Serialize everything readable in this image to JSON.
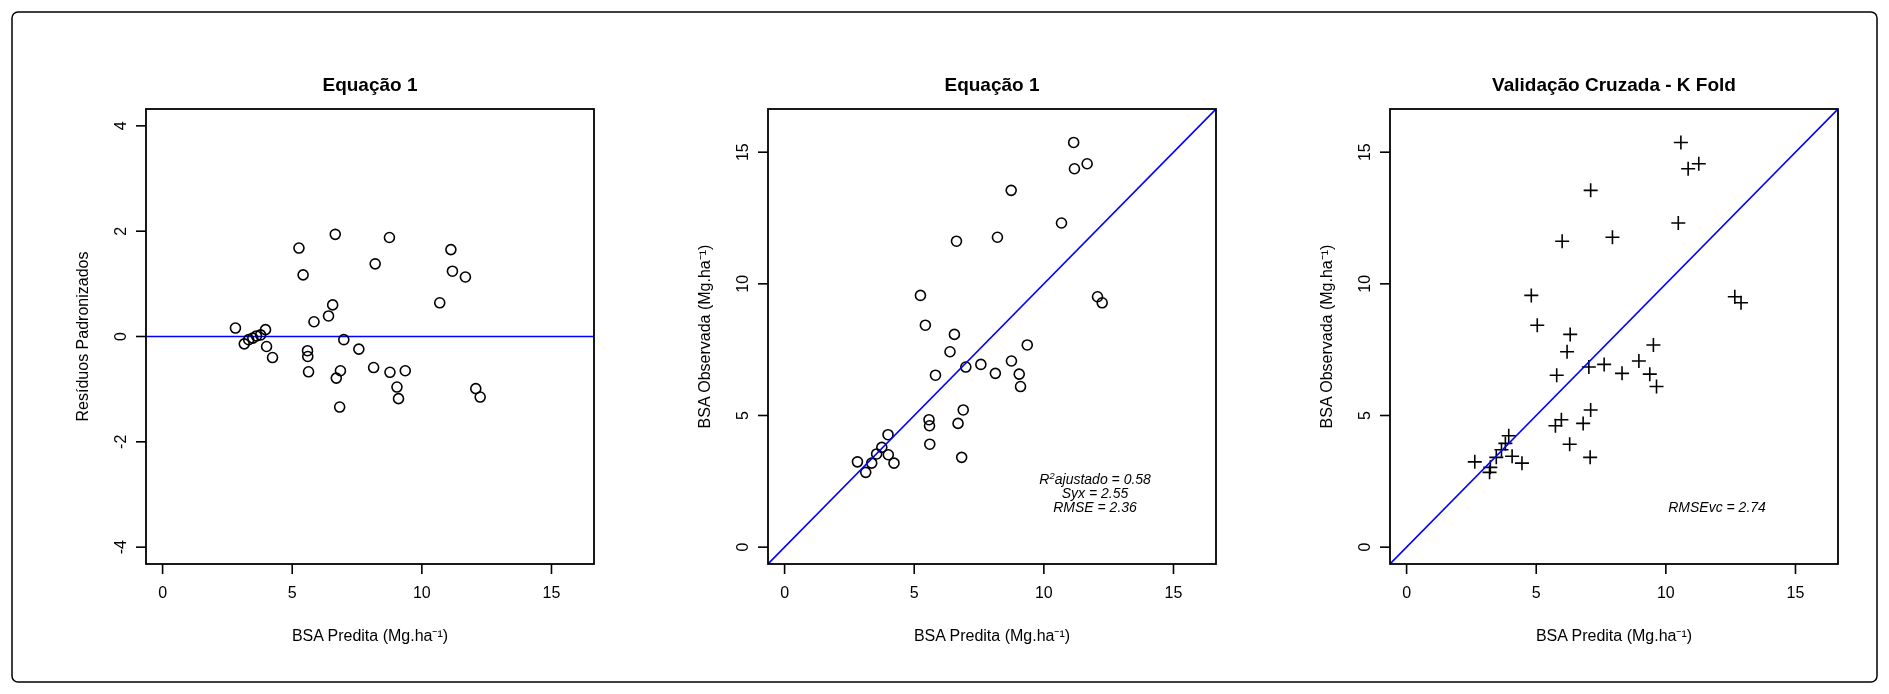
{
  "chart_data": [
    {
      "type": "scatter",
      "title": "Equação 1",
      "xlabel": "BSA Predita (Mg.ha⁻¹)",
      "ylabel": "Resíduos Padronizados",
      "xlim": [
        -0.64,
        16.64
      ],
      "xticks": [
        0,
        5,
        10,
        15
      ],
      "ylim": [
        -4.32,
        4.32
      ],
      "yticks": [
        -4,
        -2,
        0,
        2,
        4
      ],
      "grid": false,
      "series": [
        {
          "marker": "circle",
          "color": "#000000",
          "x": [
            2.81,
            3.15,
            3.32,
            3.48,
            3.62,
            3.78,
            3.97,
            4.01,
            4.24,
            5.26,
            5.42,
            5.59,
            5.6,
            5.63,
            5.84,
            6.4,
            6.56,
            6.66,
            6.7,
            6.86,
            6.83,
            6.99,
            7.57,
            8.14,
            8.2,
            8.75,
            8.77,
            9.04,
            9.1,
            9.36,
            10.69,
            11.12,
            11.18,
            11.68,
            12.08,
            12.25
          ],
          "values": [
            0.16,
            -0.14,
            -0.06,
            -0.03,
            0.01,
            0.03,
            0.13,
            -0.19,
            -0.4,
            1.68,
            1.17,
            -0.27,
            -0.38,
            -0.67,
            0.28,
            0.39,
            0.6,
            1.94,
            -0.79,
            -0.65,
            -1.34,
            -0.06,
            -0.24,
            -0.59,
            1.38,
            1.88,
            -0.68,
            -0.96,
            -1.18,
            -0.65,
            0.64,
            1.65,
            1.24,
            1.13,
            -0.99,
            -1.15
          ]
        }
      ],
      "ref_lines": [
        {
          "axis": "y",
          "value": 0,
          "color": "#0000ff"
        }
      ]
    },
    {
      "type": "scatter",
      "title": "Equação 1",
      "xlabel": "BSA Predita (Mg.ha⁻¹)",
      "ylabel": "BSA Observada (Mg.ha⁻¹)",
      "xlim": [
        -0.64,
        16.64
      ],
      "xticks": [
        0,
        5,
        10,
        15
      ],
      "ylim": [
        -0.64,
        16.64
      ],
      "yticks": [
        0,
        5,
        10,
        15
      ],
      "grid": false,
      "annotations": [
        "R$^{2}$ajustado = 0.58",
        "Syx = 2.55",
        "RMSE = 2.36"
      ],
      "series": [
        {
          "marker": "circle",
          "color": "#000000",
          "x": [
            2.81,
            3.13,
            3.36,
            3.55,
            3.75,
            3.99,
            4.0,
            4.22,
            5.24,
            5.43,
            5.57,
            5.59,
            5.6,
            5.82,
            6.38,
            6.55,
            6.63,
            6.69,
            6.83,
            6.89,
            6.99,
            7.57,
            8.13,
            8.21,
            8.74,
            8.75,
            9.05,
            9.1,
            9.36,
            10.68,
            11.15,
            11.18,
            11.67,
            12.07,
            12.25
          ],
          "values": [
            3.24,
            2.84,
            3.19,
            3.54,
            3.79,
            4.27,
            3.51,
            3.19,
            9.56,
            8.43,
            4.84,
            4.61,
            3.91,
            6.53,
            7.42,
            8.08,
            11.62,
            4.7,
            3.41,
            5.21,
            6.84,
            6.94,
            6.6,
            11.77,
            13.55,
            7.07,
            6.57,
            6.1,
            7.68,
            12.31,
            15.37,
            14.37,
            14.56,
            9.51,
            9.28
          ]
        },
        {
          "type": "line",
          "color": "#0000ff",
          "x": [
            -0.64,
            16.64
          ],
          "values": [
            -0.64,
            16.64
          ]
        }
      ]
    },
    {
      "type": "scatter",
      "title": "Validação Cruzada - K Fold",
      "xlabel": "BSA Predita (Mg.ha⁻¹)",
      "ylabel": "BSA Observada (Mg.ha⁻¹)",
      "xlim": [
        -0.64,
        16.64
      ],
      "xticks": [
        0,
        5,
        10,
        15
      ],
      "ylim": [
        -0.64,
        16.64
      ],
      "yticks": [
        0,
        5,
        10,
        15
      ],
      "grid": false,
      "annotations": [
        "RMSEvc = 2.74"
      ],
      "series": [
        {
          "marker": "cross",
          "color": "#000000",
          "x": [
            2.63,
            3.2,
            3.23,
            3.46,
            3.66,
            3.81,
            3.94,
            4.07,
            4.45,
            4.81,
            5.04,
            5.74,
            5.79,
            5.97,
            6.0,
            6.19,
            6.31,
            6.29,
            6.81,
            7.03,
            7.08,
            7.1,
            7.1,
            7.62,
            7.94,
            8.31,
            8.96,
            9.38,
            9.52,
            9.64,
            10.48,
            10.58,
            10.86,
            11.27,
            12.66,
            12.9
          ],
          "values": [
            3.24,
            2.84,
            3.03,
            3.41,
            3.7,
            3.94,
            4.23,
            3.45,
            3.19,
            9.56,
            8.43,
            4.61,
            6.53,
            4.84,
            11.62,
            7.42,
            8.08,
            3.91,
            4.7,
            6.84,
            3.41,
            5.21,
            13.55,
            6.94,
            11.77,
            6.6,
            7.07,
            6.57,
            7.68,
            6.1,
            12.31,
            15.37,
            14.37,
            14.56,
            9.51,
            9.28
          ]
        },
        {
          "type": "line",
          "color": "#0000ff",
          "x": [
            -0.64,
            16.64
          ],
          "values": [
            -0.64,
            16.64
          ]
        }
      ]
    }
  ]
}
